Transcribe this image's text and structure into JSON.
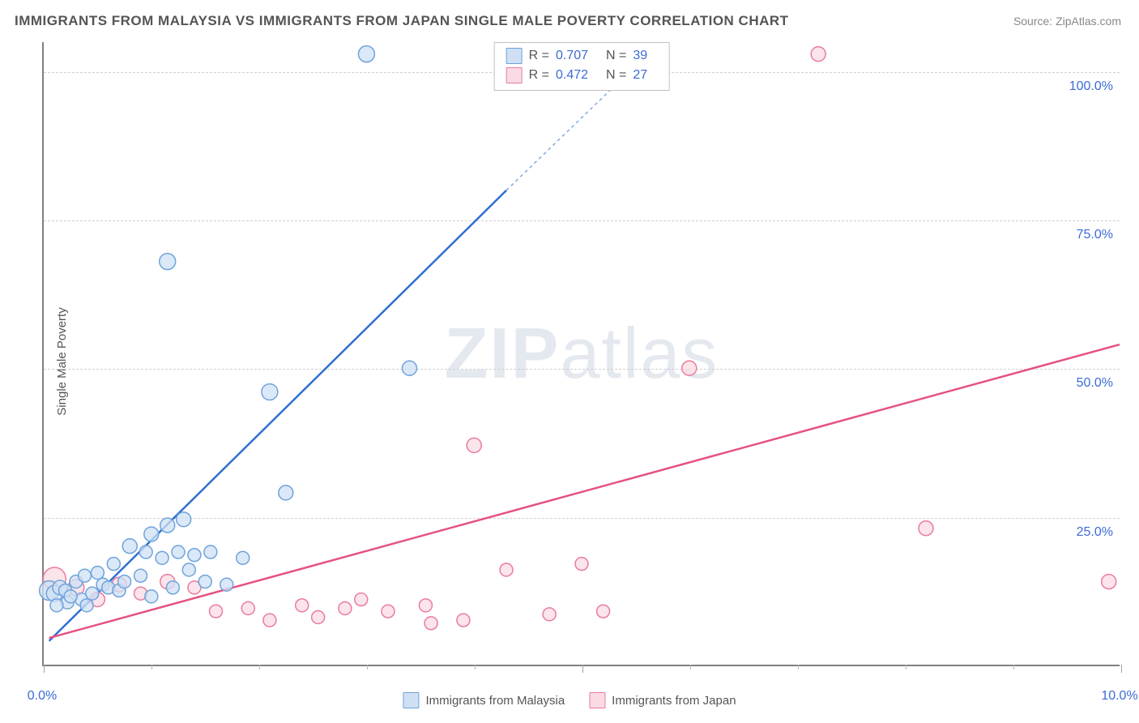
{
  "title": "IMMIGRANTS FROM MALAYSIA VS IMMIGRANTS FROM JAPAN SINGLE MALE POVERTY CORRELATION CHART",
  "source_label": "Source: ZipAtlas.com",
  "y_axis_label": "Single Male Poverty",
  "watermark": {
    "bold": "ZIP",
    "rest": "atlas"
  },
  "chart": {
    "type": "scatter",
    "background_color": "#ffffff",
    "grid_color": "#d0d0d0",
    "axis_color": "#808080",
    "tick_label_color": "#3b6bd6",
    "xlim": [
      0,
      10
    ],
    "ylim": [
      0,
      105
    ],
    "x_ticks_major": [
      0,
      5,
      10
    ],
    "x_ticks_minor": [
      1,
      2,
      3,
      4,
      6,
      7,
      8,
      9
    ],
    "x_tick_labels": {
      "0": "0.0%",
      "10": "10.0%"
    },
    "y_gridlines": [
      25,
      50,
      75,
      100
    ],
    "y_tick_labels": {
      "25": "25.0%",
      "50": "50.0%",
      "75": "75.0%",
      "100": "100.0%"
    },
    "series": [
      {
        "key": "malaysia",
        "label": "Immigrants from Malaysia",
        "fill": "#cfe0f4",
        "stroke": "#6ea3dc",
        "line_color": "#2f6fd0",
        "R": 0.707,
        "N": 39,
        "trend": {
          "x1": 0.05,
          "y1": 4.0,
          "x2": 4.3,
          "y2": 80.0,
          "dashed_to": {
            "x": 5.5,
            "y": 101.0
          }
        },
        "points": [
          {
            "x": 0.05,
            "y": 12.5,
            "r": 12
          },
          {
            "x": 0.1,
            "y": 12.0,
            "r": 10
          },
          {
            "x": 0.15,
            "y": 13.0,
            "r": 9
          },
          {
            "x": 0.2,
            "y": 12.5,
            "r": 8
          },
          {
            "x": 0.22,
            "y": 10.5,
            "r": 8
          },
          {
            "x": 0.3,
            "y": 14.0,
            "r": 8
          },
          {
            "x": 0.35,
            "y": 11.0,
            "r": 8
          },
          {
            "x": 0.38,
            "y": 15.0,
            "r": 8
          },
          {
            "x": 0.45,
            "y": 12.0,
            "r": 8
          },
          {
            "x": 0.5,
            "y": 15.5,
            "r": 8
          },
          {
            "x": 0.55,
            "y": 13.5,
            "r": 8
          },
          {
            "x": 0.6,
            "y": 13.0,
            "r": 8
          },
          {
            "x": 0.65,
            "y": 17.0,
            "r": 8
          },
          {
            "x": 0.7,
            "y": 12.5,
            "r": 8
          },
          {
            "x": 0.75,
            "y": 14.0,
            "r": 8
          },
          {
            "x": 0.8,
            "y": 20.0,
            "r": 9
          },
          {
            "x": 0.9,
            "y": 15.0,
            "r": 8
          },
          {
            "x": 0.95,
            "y": 19.0,
            "r": 8
          },
          {
            "x": 1.0,
            "y": 22.0,
            "r": 9
          },
          {
            "x": 1.1,
            "y": 18.0,
            "r": 8
          },
          {
            "x": 1.15,
            "y": 23.5,
            "r": 9
          },
          {
            "x": 1.2,
            "y": 13.0,
            "r": 8
          },
          {
            "x": 1.25,
            "y": 19.0,
            "r": 8
          },
          {
            "x": 1.3,
            "y": 24.5,
            "r": 9
          },
          {
            "x": 1.35,
            "y": 16.0,
            "r": 8
          },
          {
            "x": 1.4,
            "y": 18.5,
            "r": 8
          },
          {
            "x": 1.5,
            "y": 14.0,
            "r": 8
          },
          {
            "x": 1.55,
            "y": 19.0,
            "r": 8
          },
          {
            "x": 1.7,
            "y": 13.5,
            "r": 8
          },
          {
            "x": 1.85,
            "y": 18.0,
            "r": 8
          },
          {
            "x": 1.15,
            "y": 68.0,
            "r": 10
          },
          {
            "x": 2.25,
            "y": 29.0,
            "r": 9
          },
          {
            "x": 2.1,
            "y": 46.0,
            "r": 10
          },
          {
            "x": 3.0,
            "y": 103.0,
            "r": 10
          },
          {
            "x": 3.4,
            "y": 50.0,
            "r": 9
          },
          {
            "x": 1.0,
            "y": 11.5,
            "r": 8
          },
          {
            "x": 0.4,
            "y": 10.0,
            "r": 8
          },
          {
            "x": 0.25,
            "y": 11.5,
            "r": 8
          },
          {
            "x": 0.12,
            "y": 10.0,
            "r": 8
          }
        ]
      },
      {
        "key": "japan",
        "label": "Immigrants from Japan",
        "fill": "#fadbe3",
        "stroke": "#e97ba0",
        "line_color": "#e5527f",
        "R": 0.472,
        "N": 27,
        "trend": {
          "x1": 0.05,
          "y1": 4.5,
          "x2": 10.0,
          "y2": 54.0
        },
        "points": [
          {
            "x": 0.1,
            "y": 14.5,
            "r": 14
          },
          {
            "x": 0.3,
            "y": 13.0,
            "r": 10
          },
          {
            "x": 0.5,
            "y": 11.0,
            "r": 9
          },
          {
            "x": 0.7,
            "y": 13.5,
            "r": 9
          },
          {
            "x": 0.9,
            "y": 12.0,
            "r": 8
          },
          {
            "x": 1.15,
            "y": 14.0,
            "r": 9
          },
          {
            "x": 1.4,
            "y": 13.0,
            "r": 8
          },
          {
            "x": 1.6,
            "y": 9.0,
            "r": 8
          },
          {
            "x": 1.9,
            "y": 9.5,
            "r": 8
          },
          {
            "x": 2.1,
            "y": 7.5,
            "r": 8
          },
          {
            "x": 2.4,
            "y": 10.0,
            "r": 8
          },
          {
            "x": 2.55,
            "y": 8.0,
            "r": 8
          },
          {
            "x": 2.8,
            "y": 9.5,
            "r": 8
          },
          {
            "x": 2.95,
            "y": 11.0,
            "r": 8
          },
          {
            "x": 3.2,
            "y": 9.0,
            "r": 8
          },
          {
            "x": 3.55,
            "y": 10.0,
            "r": 8
          },
          {
            "x": 3.6,
            "y": 7.0,
            "r": 8
          },
          {
            "x": 3.9,
            "y": 7.5,
            "r": 8
          },
          {
            "x": 4.0,
            "y": 37.0,
            "r": 9
          },
          {
            "x": 4.3,
            "y": 16.0,
            "r": 8
          },
          {
            "x": 4.7,
            "y": 8.5,
            "r": 8
          },
          {
            "x": 5.0,
            "y": 17.0,
            "r": 8
          },
          {
            "x": 5.2,
            "y": 9.0,
            "r": 8
          },
          {
            "x": 6.0,
            "y": 50.0,
            "r": 9
          },
          {
            "x": 7.2,
            "y": 103.0,
            "r": 9
          },
          {
            "x": 8.2,
            "y": 23.0,
            "r": 9
          },
          {
            "x": 9.9,
            "y": 14.0,
            "r": 9
          }
        ]
      }
    ]
  }
}
